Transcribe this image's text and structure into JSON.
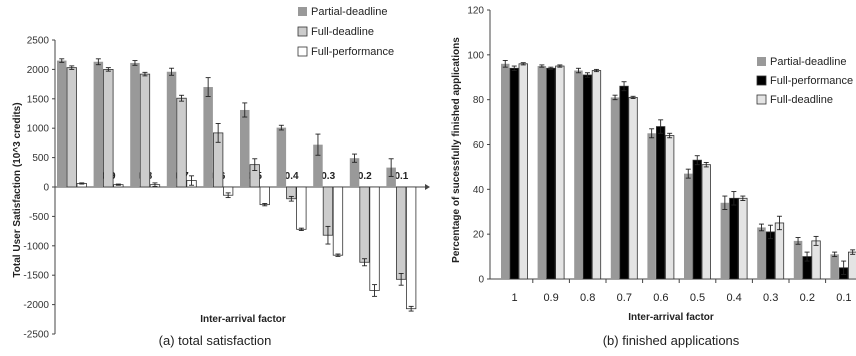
{
  "chart_data": [
    {
      "type": "bar",
      "caption": "(a) total satisfaction",
      "xlabel": "Inter-arrival factor",
      "ylabel": "Total User Satisfaction (10^3 credits)",
      "ylim": [
        -2500,
        2500
      ],
      "yticks": [
        -2500,
        -2000,
        -1500,
        -1000,
        -500,
        0,
        500,
        1000,
        1500,
        2000,
        2500
      ],
      "categories": [
        "1",
        "0.9",
        "0.8",
        "0.7",
        "0.6",
        "0.5",
        "0.4",
        "0.3",
        "0.2",
        "0.1"
      ],
      "series": [
        {
          "name": "Partial-deadline",
          "color": "#999999",
          "values": [
            2150,
            2130,
            2110,
            1960,
            1700,
            1310,
            1010,
            720,
            490,
            330
          ],
          "errors": [
            30,
            50,
            40,
            60,
            160,
            120,
            40,
            180,
            70,
            150
          ]
        },
        {
          "name": "Full-deadline",
          "color": "#cccccc",
          "values": [
            2030,
            2000,
            1920,
            1510,
            920,
            380,
            -200,
            -820,
            -1280,
            -1570
          ],
          "errors": [
            30,
            30,
            30,
            50,
            160,
            100,
            40,
            150,
            60,
            100
          ]
        },
        {
          "name": "Full-performance",
          "color": "#ffffff",
          "values": [
            60,
            40,
            40,
            110,
            -140,
            -300,
            -720,
            -1160,
            -1760,
            -2070
          ],
          "errors": [
            10,
            10,
            30,
            80,
            40,
            20,
            20,
            20,
            100,
            40
          ]
        }
      ],
      "legend_position": "top-right"
    },
    {
      "type": "bar",
      "caption": "(b) finished applications",
      "xlabel": "Inter-arrival factor",
      "ylabel": "Percentage of sucessfully finished applications",
      "ylim": [
        0,
        120
      ],
      "yticks": [
        0,
        20,
        40,
        60,
        80,
        100,
        120
      ],
      "categories": [
        "1",
        "0.9",
        "0.8",
        "0.7",
        "0.6",
        "0.5",
        "0.4",
        "0.3",
        "0.2",
        "0.1"
      ],
      "series": [
        {
          "name": "Partial-deadline",
          "color": "#999999",
          "values": [
            96,
            95,
            93,
            81,
            65,
            47,
            34,
            23,
            17,
            11
          ],
          "errors": [
            1.5,
            0.5,
            1,
            1,
            2,
            2,
            3,
            1.5,
            1.5,
            1
          ]
        },
        {
          "name": "Full-performance",
          "color": "#000000",
          "values": [
            94,
            94,
            91,
            86,
            68,
            53,
            36,
            21,
            10,
            5
          ],
          "errors": [
            1,
            0.5,
            1,
            2,
            3,
            2,
            3,
            3,
            2,
            3
          ]
        },
        {
          "name": "Full-deadline",
          "color": "#e4e4e4",
          "values": [
            96,
            95,
            93,
            81,
            64,
            51,
            36,
            25,
            17,
            12
          ],
          "errors": [
            0.5,
            0.5,
            0.5,
            0.5,
            1,
            1,
            1,
            3,
            2,
            1
          ]
        }
      ],
      "legend_position": "top-right"
    }
  ]
}
